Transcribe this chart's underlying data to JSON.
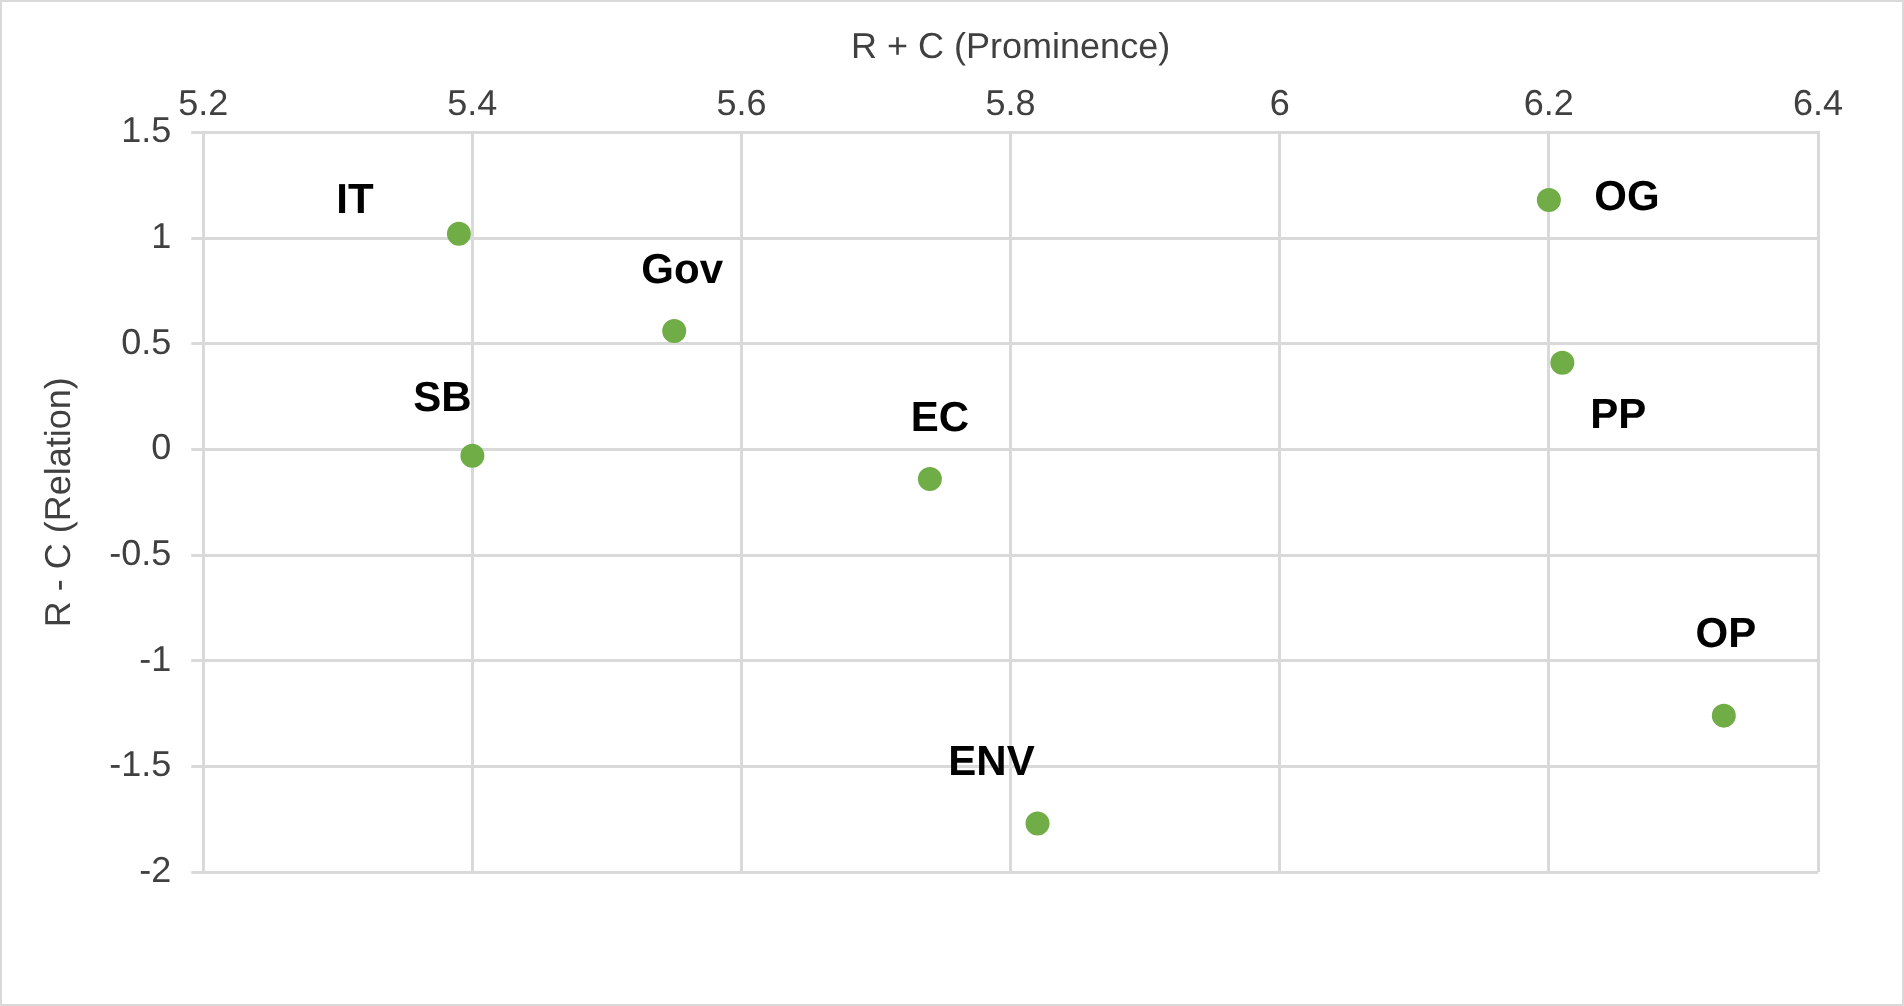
{
  "chart_data": {
    "type": "scatter",
    "xlabel": "R + C (Prominence)",
    "ylabel": "R - C (Relation)",
    "series": [
      {
        "color": "#70ad47",
        "x": [
          5.39,
          5.55,
          5.4,
          5.74,
          5.82,
          6.2,
          6.21,
          6.33
        ],
        "values": [
          1.02,
          0.56,
          -0.03,
          -0.14,
          -1.77,
          1.18,
          0.41,
          -1.26
        ]
      }
    ],
    "xlim": [
      5.2,
      6.4
    ],
    "xticks": [
      5.2,
      5.4,
      5.6,
      5.8,
      6,
      6.2,
      6.4
    ],
    "ylim": [
      -2,
      1.5
    ],
    "yticks": [
      -2,
      -1.5,
      -1,
      -0.5,
      0,
      0.5,
      1,
      1.5
    ],
    "grid": true,
    "legend": false,
    "marker": "circle",
    "annotations": [
      {
        "text": "IT",
        "x": 5.39,
        "y": 1.02
      },
      {
        "text": "Gov",
        "x": 5.55,
        "y": 0.56
      },
      {
        "text": "SB",
        "x": 5.4,
        "y": -0.03
      },
      {
        "text": "EC",
        "x": 5.74,
        "y": -0.14
      },
      {
        "text": "ENV",
        "x": 5.82,
        "y": -1.77
      },
      {
        "text": "OG",
        "x": 6.2,
        "y": 1.18
      },
      {
        "text": "PP",
        "x": 6.21,
        "y": 0.41
      },
      {
        "text": "OP",
        "x": 6.33,
        "y": -1.26
      }
    ]
  }
}
